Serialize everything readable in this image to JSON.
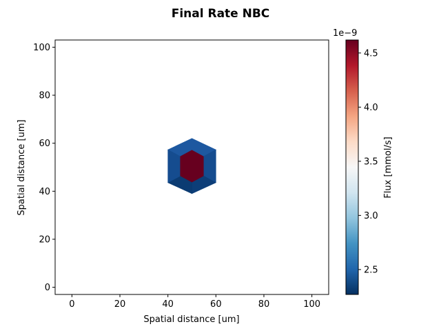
{
  "chart_data": {
    "type": "heatmap",
    "title": "Final Rate NBC",
    "xlabel": "Spatial distance [um]",
    "ylabel": "Spatial distance [um]",
    "xlim": [
      -7,
      107
    ],
    "ylim": [
      -3,
      103
    ],
    "xticks": [
      "0",
      "20",
      "40",
      "60",
      "80",
      "100"
    ],
    "xtick_values": [
      0,
      20,
      40,
      60,
      80,
      100
    ],
    "yticks": [
      "0",
      "20",
      "40",
      "60",
      "80",
      "100"
    ],
    "ytick_values": [
      0,
      20,
      40,
      60,
      80,
      100
    ],
    "grid": false,
    "colorbar": {
      "label": "Flux [mmol/s]",
      "offset_text": "1e−9",
      "colormap": "RdBu_r",
      "range": [
        2.27,
        4.62
      ],
      "ticks": [
        "2.5",
        "3.0",
        "3.5",
        "4.0",
        "4.5"
      ],
      "tick_values": [
        2.5,
        3.0,
        3.5,
        4.0,
        4.5
      ]
    },
    "cells": [
      {
        "name": "center",
        "points": [
          [
            50,
            57.3
          ],
          [
            55,
            54.6
          ],
          [
            55,
            46.3
          ],
          [
            50,
            43.6
          ],
          [
            45,
            46.3
          ],
          [
            45,
            54.6
          ]
        ],
        "value": 4.62,
        "color": "#67001f"
      },
      {
        "name": "top",
        "points": [
          [
            50,
            57.3
          ],
          [
            55,
            54.6
          ],
          [
            60,
            57.3
          ],
          [
            50,
            62.0
          ],
          [
            40,
            57.3
          ],
          [
            45,
            54.6
          ]
        ],
        "value": 2.4,
        "color": "#1d58a0"
      },
      {
        "name": "upper-right",
        "points": [
          [
            55,
            54.6
          ],
          [
            55,
            46.3
          ],
          [
            60,
            43.6
          ],
          [
            60,
            57.3
          ]
        ],
        "value": 2.33,
        "color": "#154c8f"
      },
      {
        "name": "lower-right",
        "points": [
          [
            55,
            46.3
          ],
          [
            50,
            43.6
          ],
          [
            50,
            39.0
          ],
          [
            60,
            43.6
          ]
        ],
        "value": 2.27,
        "color": "#0d3e78"
      },
      {
        "name": "bottom",
        "points": [
          [
            50,
            43.6
          ],
          [
            45,
            46.3
          ],
          [
            40,
            43.6
          ],
          [
            50,
            39.0
          ]
        ],
        "value": 2.27,
        "color": "#0b3b72"
      },
      {
        "name": "lower-left",
        "points": [
          [
            45,
            46.3
          ],
          [
            45,
            54.6
          ],
          [
            40,
            57.3
          ],
          [
            40,
            43.6
          ]
        ],
        "value": 2.33,
        "color": "#154c8f"
      }
    ]
  }
}
